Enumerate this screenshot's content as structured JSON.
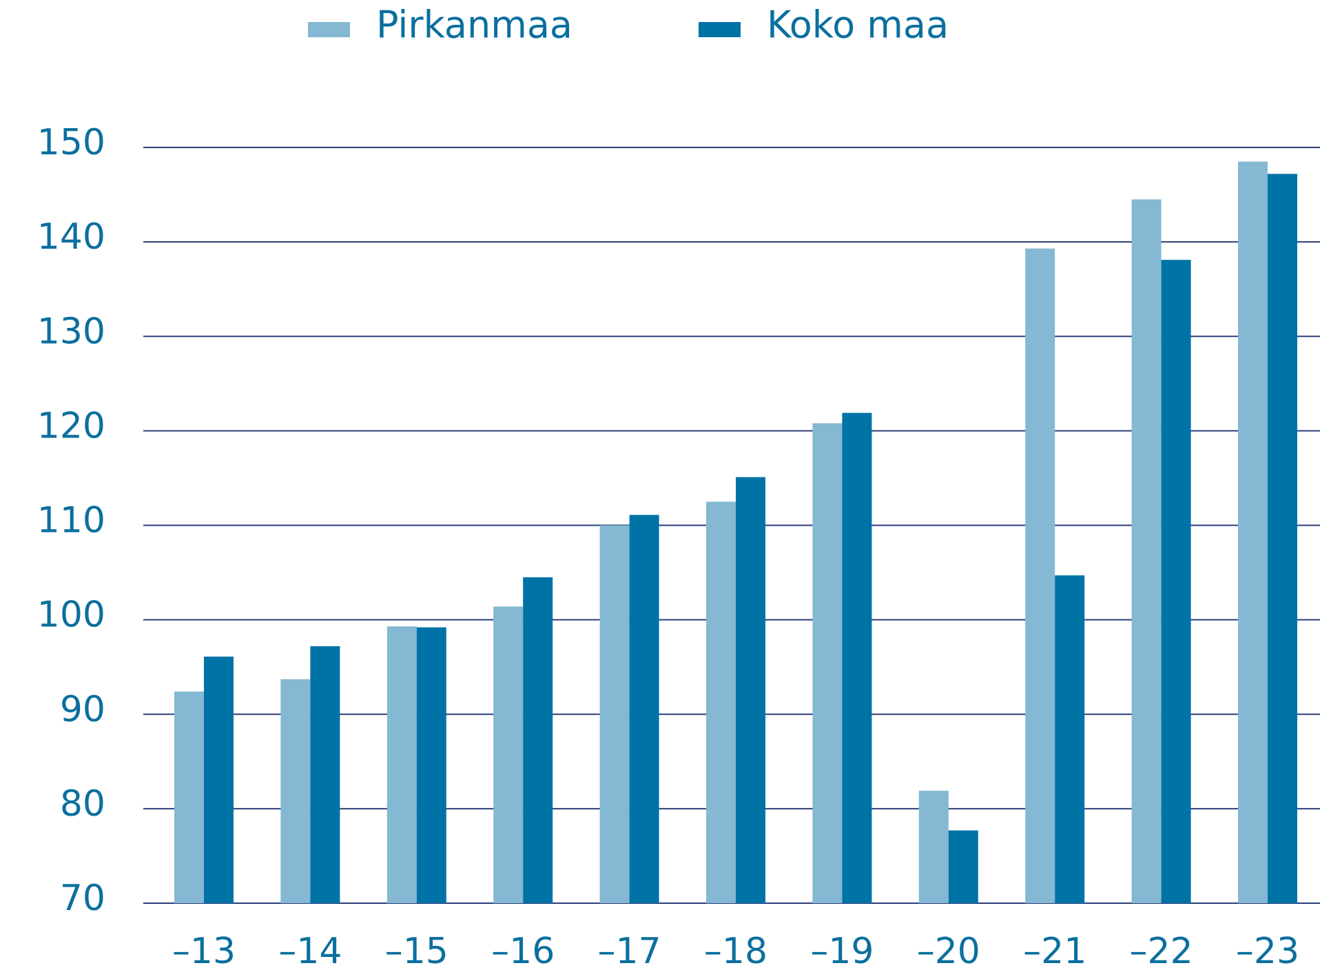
{
  "chart_data": {
    "type": "bar",
    "categories": [
      "–13",
      "–14",
      "–15",
      "–16",
      "–17",
      "–18",
      "–19",
      "–20",
      "–21",
      "–22",
      "–23"
    ],
    "series": [
      {
        "name": "Pirkanmaa",
        "color": "#84b8d3",
        "values": [
          92.4,
          93.7,
          99.3,
          101.4,
          110,
          112.5,
          120.8,
          81.9,
          139.3,
          144.5,
          148.5
        ]
      },
      {
        "name": "Koko maa",
        "color": "#0073a6",
        "values": [
          96.1,
          97.2,
          99.2,
          104.5,
          111.1,
          115.1,
          121.9,
          77.7,
          104.7,
          138.1,
          147.2
        ]
      }
    ],
    "ylim": [
      70,
      150
    ],
    "yticks": [
      70,
      80,
      90,
      100,
      110,
      120,
      130,
      140,
      150
    ],
    "grid": true,
    "legend": "top"
  }
}
